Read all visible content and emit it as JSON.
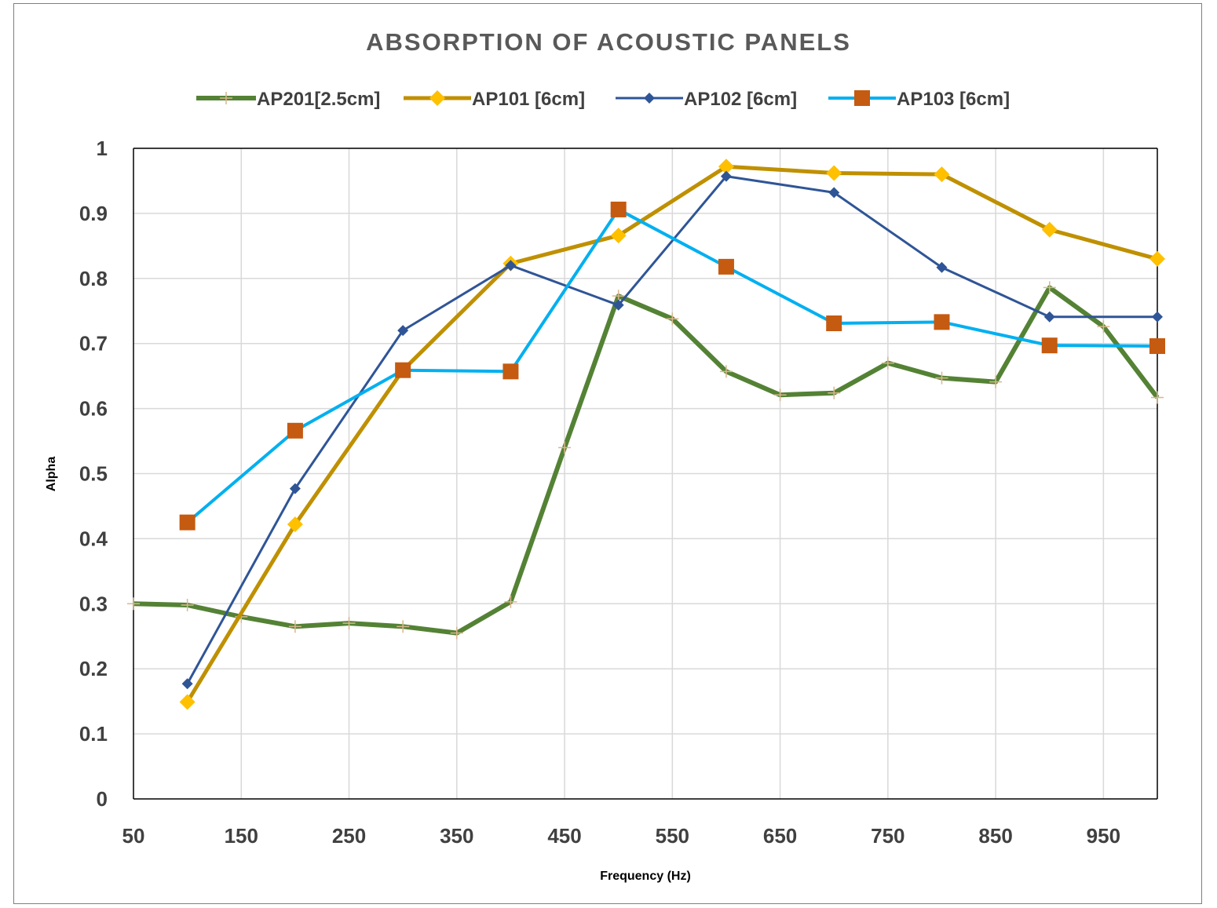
{
  "chart_data": {
    "type": "line",
    "title": "ABSORPTION OF ACOUSTIC PANELS",
    "xlabel": "Frequency (Hz)",
    "ylabel": "Alpha",
    "xlim": [
      50,
      1000
    ],
    "ylim": [
      0,
      1
    ],
    "x_ticks": [
      "50",
      "150",
      "250",
      "350",
      "450",
      "550",
      "650",
      "750",
      "850",
      "950"
    ],
    "x_tick_values": [
      50,
      150,
      250,
      350,
      450,
      550,
      650,
      750,
      850,
      950
    ],
    "y_ticks": [
      "0",
      "0.1",
      "0.2",
      "0.3",
      "0.4",
      "0.5",
      "0.6",
      "0.7",
      "0.8",
      "0.9",
      "1"
    ],
    "y_tick_values": [
      0,
      0.1,
      0.2,
      0.3,
      0.4,
      0.5,
      0.6,
      0.7,
      0.8,
      0.9,
      1
    ],
    "grid": true,
    "legend_position": "top",
    "series": [
      {
        "name": "AP201[2.5cm]",
        "color": "#548235",
        "marker": "plus",
        "x": [
          50,
          100,
          150,
          200,
          250,
          300,
          350,
          400,
          450,
          500,
          550,
          600,
          650,
          700,
          750,
          800,
          850,
          900,
          950,
          1000
        ],
        "y": [
          0.3,
          0.298,
          0.28,
          0.265,
          0.27,
          0.265,
          0.255,
          0.303,
          0.54,
          0.773,
          0.738,
          0.657,
          0.621,
          0.624,
          0.67,
          0.647,
          0.641,
          0.786,
          0.726,
          0.617
        ]
      },
      {
        "name": "AP101 [6cm]",
        "color": "#BF9000",
        "marker_color": "#FFC000",
        "marker": "diamond",
        "x": [
          100,
          200,
          300,
          400,
          500,
          600,
          700,
          800,
          900,
          1000
        ],
        "y": [
          0.149,
          0.422,
          0.659,
          0.823,
          0.866,
          0.972,
          0.962,
          0.96,
          0.875,
          0.83
        ]
      },
      {
        "name": "AP102 [6cm]",
        "color": "#2F5597",
        "marker": "diamond",
        "x": [
          100,
          200,
          300,
          400,
          500,
          600,
          700,
          800,
          900,
          1000
        ],
        "y": [
          0.177,
          0.477,
          0.72,
          0.82,
          0.759,
          0.957,
          0.932,
          0.817,
          0.741,
          0.741
        ]
      },
      {
        "name": "AP103 [6cm]",
        "color": "#00B0F0",
        "marker_color": "#C55A11",
        "marker": "square",
        "x": [
          100,
          200,
          300,
          400,
          500,
          600,
          700,
          800,
          900,
          1000
        ],
        "y": [
          0.425,
          0.566,
          0.659,
          0.657,
          0.906,
          0.818,
          0.731,
          0.733,
          0.697,
          0.696
        ]
      }
    ]
  }
}
